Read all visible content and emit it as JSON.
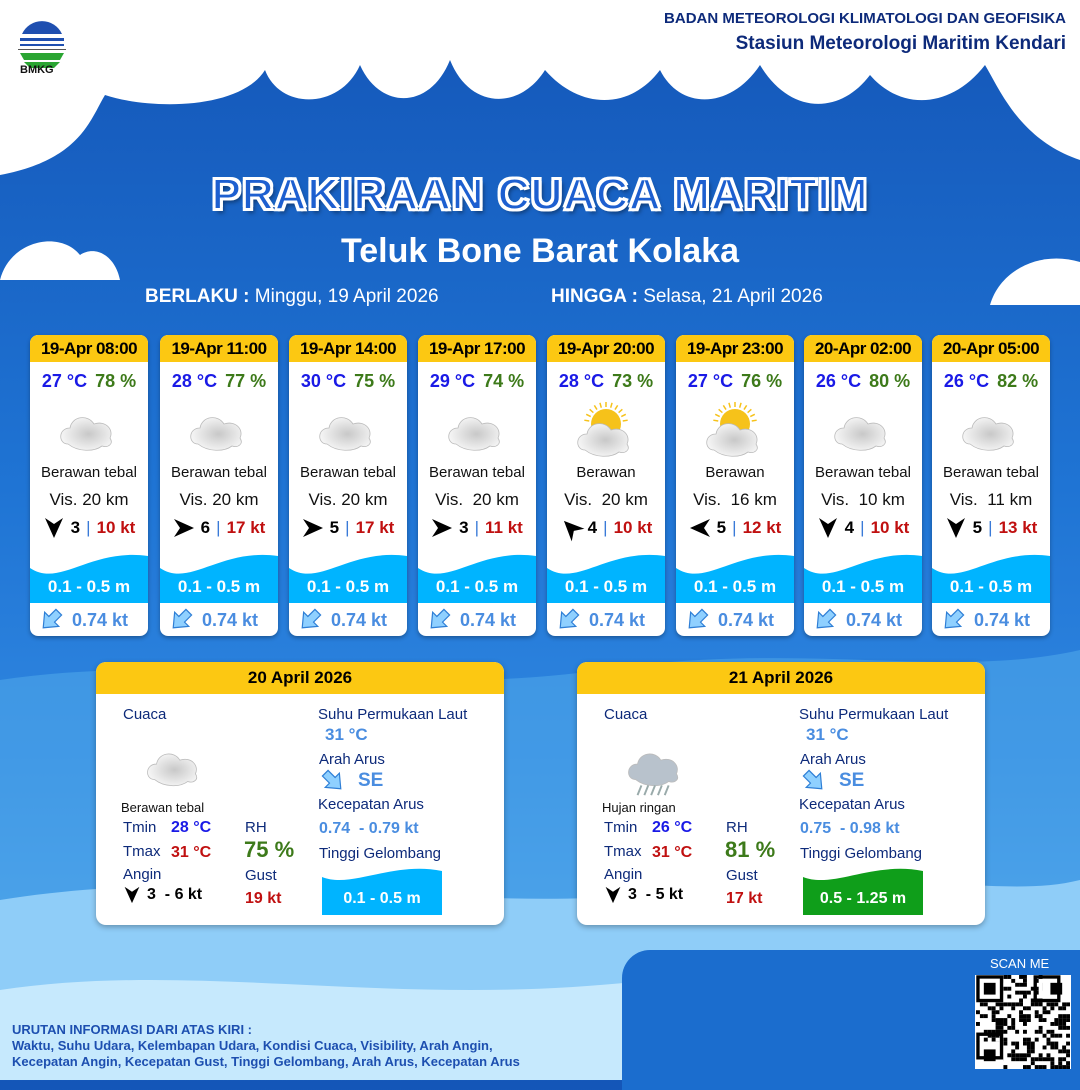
{
  "header": {
    "logo_text": "BMKG",
    "org_line1": "BADAN METEOROLOGI KLIMATOLOGI DAN GEOFISIKA",
    "org_line2": "Stasiun Meteorologi Maritim Kendari"
  },
  "title": "PRAKIRAAN CUACA MARITIM",
  "subtitle": "Teluk Bone Barat Kolaka",
  "validity": {
    "from_label": "BERLAKU :",
    "from_value": "Minggu, 19 April 2026",
    "to_label": "HINGGA :",
    "to_value": "Selasa, 21 April 2026"
  },
  "colors": {
    "temp": "#1a1ae6",
    "rh": "#3d7a1a",
    "gust": "#c01010",
    "wave": "#00b4ff",
    "wave_high": "#0f9e1a",
    "header": "#fcc812",
    "current": "#4a8de0"
  },
  "forecasts": [
    {
      "time": "19-Apr 08:00",
      "temp": "27 °C",
      "rh": "78 %",
      "icon": "cloud-icon",
      "weather": "Berawan tebal",
      "vis": "Vis. 20 km",
      "wind_bearing": 180,
      "wind": "3",
      "gust": "10 kt",
      "wave": "0.1 - 0.5 m",
      "current_icon": "arrow-southwest-icon",
      "current": "0.74 kt"
    },
    {
      "time": "19-Apr 11:00",
      "temp": "28 °C",
      "rh": "77 %",
      "icon": "cloud-icon",
      "weather": "Berawan tebal",
      "vis": "Vis. 20 km",
      "wind_bearing": 90,
      "wind": "6",
      "gust": "17 kt",
      "wave": "0.1 - 0.5 m",
      "current_icon": "arrow-southwest-icon",
      "current": "0.74 kt"
    },
    {
      "time": "19-Apr 14:00",
      "temp": "30 °C",
      "rh": "75 %",
      "icon": "cloud-icon",
      "weather": "Berawan tebal",
      "vis": "Vis. 20 km",
      "wind_bearing": 90,
      "wind": "5",
      "gust": "17 kt",
      "wave": "0.1 - 0.5 m",
      "current_icon": "arrow-southwest-icon",
      "current": "0.74 kt"
    },
    {
      "time": "19-Apr 17:00",
      "temp": "29 °C",
      "rh": "74 %",
      "icon": "cloud-icon",
      "weather": "Berawan tebal",
      "vis": "Vis.  20 km",
      "wind_bearing": 90,
      "wind": "3",
      "gust": "11 kt",
      "wave": "0.1 - 0.5 m",
      "current_icon": "arrow-southwest-icon",
      "current": "0.74 kt"
    },
    {
      "time": "19-Apr 20:00",
      "temp": "28 °C",
      "rh": "73 %",
      "icon": "sun-cloud-icon",
      "weather": "Berawan",
      "vis": "Vis.  20 km",
      "wind_bearing": 315,
      "wind": "4",
      "gust": "10 kt",
      "wave": "0.1 - 0.5 m",
      "current_icon": "arrow-southwest-icon",
      "current": "0.74 kt"
    },
    {
      "time": "19-Apr 23:00",
      "temp": "27 °C",
      "rh": "76 %",
      "icon": "sun-cloud-icon",
      "weather": "Berawan",
      "vis": "Vis.  16 km",
      "wind_bearing": 270,
      "wind": "5",
      "gust": "12 kt",
      "wave": "0.1 - 0.5 m",
      "current_icon": "arrow-southwest-icon",
      "current": "0.74 kt"
    },
    {
      "time": "20-Apr 02:00",
      "temp": "26 °C",
      "rh": "80 %",
      "icon": "cloud-icon",
      "weather": "Berawan tebal",
      "vis": "Vis.  10 km",
      "wind_bearing": 180,
      "wind": "4",
      "gust": "10 kt",
      "wave": "0.1 - 0.5 m",
      "current_icon": "arrow-southwest-icon",
      "current": "0.74 kt"
    },
    {
      "time": "20-Apr 05:00",
      "temp": "26 °C",
      "rh": "82 %",
      "icon": "cloud-icon",
      "weather": "Berawan tebal",
      "vis": "Vis.  11 km",
      "wind_bearing": 180,
      "wind": "5",
      "gust": "13 kt",
      "wave": "0.1 - 0.5 m",
      "current_icon": "arrow-southwest-icon",
      "current": "0.74 kt"
    }
  ],
  "labels": {
    "cuaca": "Cuaca",
    "tmin": "Tmin",
    "tmax": "Tmax",
    "angin": "Angin",
    "rh": "RH",
    "gust": "Gust",
    "sst": "Suhu Permukaan Laut",
    "current_dir": "Arah Arus",
    "current_speed": "Kecepatan Arus",
    "wave": "Tinggi Gelombang"
  },
  "daily": [
    {
      "date": "20 April 2026",
      "icon": "cloud-icon",
      "weather": "Berawan tebal",
      "tmin": "28 °C",
      "tmax": "31 °C",
      "wind_bearing": 180,
      "wind": "3  - 6 kt",
      "rh": "75 %",
      "gust": "19 kt",
      "sst": "31 °C",
      "current_dir": "SE",
      "current_speed": "0.74  - 0.79 kt",
      "wave": "0.1 - 0.5 m",
      "wave_color": "#00b4ff"
    },
    {
      "date": "21 April 2026",
      "icon": "rain-cloud-icon",
      "weather": "Hujan ringan",
      "tmin": "26 °C",
      "tmax": "31 °C",
      "wind_bearing": 180,
      "wind": "3  - 5 kt",
      "rh": "81 %",
      "gust": "17 kt",
      "sst": "31 °C",
      "current_dir": "SE",
      "current_speed": "0.75  - 0.98 kt",
      "wave": "0.5 - 1.25 m",
      "wave_color": "#0f9e1a"
    }
  ],
  "footer": {
    "heading": "URUTAN INFORMASI DARI ATAS KIRI :",
    "line1": "Waktu, Suhu Udara, Kelembapan Udara, Kondisi Cuaca, Visibility, Arah Angin,",
    "line2": "Kecepatan Angin, Kecepatan Gust, Tinggi Gelombang, Arah Arus, Kecepatan Arus",
    "scan": "SCAN ME"
  }
}
